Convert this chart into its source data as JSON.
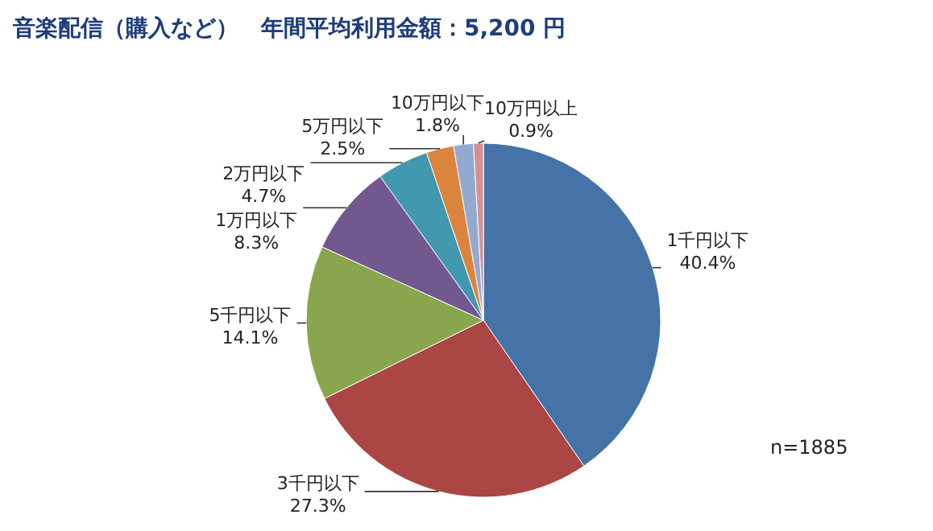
{
  "chart_data": {
    "type": "pie",
    "title": "音楽配信（購入など）　年間平均利用金額：5,200 円",
    "categories": [
      "1千円以下",
      "3千円以下",
      "5千円以下",
      "1万円以下",
      "2万円以下",
      "5万円以下",
      "10万円以下",
      "10万円以上"
    ],
    "values": [
      40.4,
      27.3,
      14.1,
      8.3,
      4.7,
      2.5,
      1.8,
      0.9
    ],
    "value_labels": [
      "40.4%",
      "27.3%",
      "14.1%",
      "8.3%",
      "4.7%",
      "2.5%",
      "1.8%",
      "0.9%"
    ],
    "colors": [
      "#4572a7",
      "#aa4643",
      "#89a54e",
      "#71588f",
      "#4198af",
      "#db843d",
      "#93a9cf",
      "#d19392"
    ],
    "annotations": [
      "n=1885"
    ],
    "legend": false
  }
}
